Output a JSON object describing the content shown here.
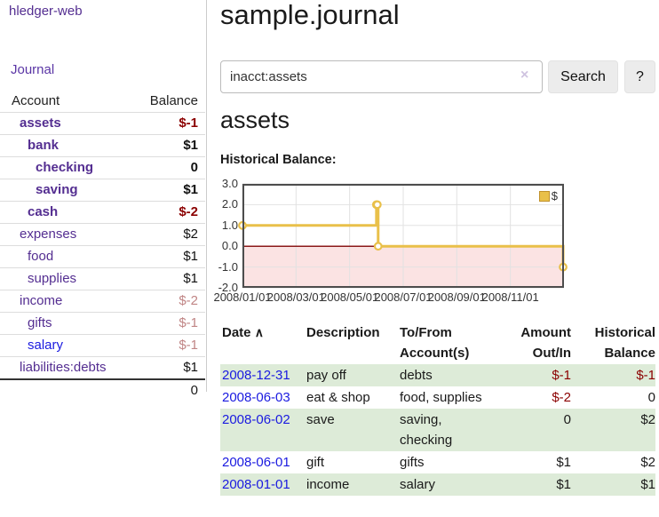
{
  "app": {
    "brand": "hledger-web"
  },
  "sidebar": {
    "nav": {
      "journal_label": "Journal"
    },
    "accounts_table": {
      "headers": {
        "account": "Account",
        "balance": "Balance"
      },
      "rows": [
        {
          "name": "assets",
          "depth": 1,
          "bold": true,
          "balance": "$-1",
          "balance_color": "negative"
        },
        {
          "name": "bank",
          "depth": 2,
          "bold": true,
          "balance": "$1",
          "balance_color": "normal"
        },
        {
          "name": "checking",
          "depth": 3,
          "bold": true,
          "balance": "0",
          "balance_color": "normal"
        },
        {
          "name": "saving",
          "depth": 3,
          "bold": true,
          "balance": "$1",
          "balance_color": "normal"
        },
        {
          "name": "cash",
          "depth": 2,
          "bold": true,
          "balance": "$-2",
          "balance_color": "negative"
        },
        {
          "name": "expenses",
          "depth": 1,
          "bold": false,
          "balance": "$2",
          "balance_color": "normal"
        },
        {
          "name": "food",
          "depth": 2,
          "bold": false,
          "balance": "$1",
          "balance_color": "normal"
        },
        {
          "name": "supplies",
          "depth": 2,
          "bold": false,
          "balance": "$1",
          "balance_color": "normal"
        },
        {
          "name": "income",
          "depth": 1,
          "bold": false,
          "balance": "$-2",
          "balance_color": "rose"
        },
        {
          "name": "gifts",
          "depth": 2,
          "bold": false,
          "balance": "$-1",
          "balance_color": "rose"
        },
        {
          "name": "salary",
          "depth": 2,
          "bold": false,
          "balance": "$-1",
          "balance_color": "rose",
          "link_color": "blue"
        },
        {
          "name": "liabilities:debts",
          "depth": 1,
          "bold": false,
          "balance": "$1",
          "balance_color": "normal"
        }
      ],
      "total": "0"
    }
  },
  "main": {
    "title": "sample.journal",
    "search": {
      "value": "inacct:assets",
      "clear_icon": "×",
      "button_label": "Search",
      "help_label": "?"
    },
    "section_title": "assets",
    "chart_label": "Historical Balance:"
  },
  "chart_data": {
    "type": "line",
    "step": true,
    "title": "Historical Balance:",
    "legend_label": "$",
    "legend_position": "top-right",
    "grid": true,
    "ylim": [
      -2,
      3
    ],
    "x_range_months": 12,
    "y_ticks": [
      "3.0",
      "2.0",
      "1.0",
      "0.0",
      "-1.0",
      "-2.0"
    ],
    "x_tick_labels": [
      "2008/01/01",
      "2008/03/01",
      "2008/05/01",
      "2008/07/01",
      "2008/09/01",
      "2008/11/01"
    ],
    "series": [
      {
        "name": "$",
        "points": [
          {
            "date": "2008-01-01",
            "value": 1
          },
          {
            "date": "2008-06-01",
            "value": 2
          },
          {
            "date": "2008-06-02",
            "value": 2
          },
          {
            "date": "2008-06-03",
            "value": 0
          },
          {
            "date": "2008-12-31",
            "value": -1
          }
        ]
      }
    ],
    "colors": {
      "line": "#e9c04a",
      "marker_fill": "#ffffff",
      "negative_region": "#fbe3e3",
      "zero_line": "#8b1a1a",
      "grid": "#e2e2e2",
      "border": "#4d4d4d"
    }
  },
  "transactions": {
    "headers": {
      "date": "Date",
      "sort_indicator": "∧",
      "description": "Description",
      "accounts": "To/From Account(s)",
      "amount": "Amount Out/In",
      "balance": "Historical Balance"
    },
    "rows": [
      {
        "date": "2008-12-31",
        "description": "pay off",
        "accounts": "debts",
        "amount": "$-1",
        "amount_negative": true,
        "balance": "$-1",
        "balance_negative": true
      },
      {
        "date": "2008-06-03",
        "description": "eat & shop",
        "accounts": "food, supplies",
        "amount": "$-2",
        "amount_negative": true,
        "balance": "0",
        "balance_negative": false
      },
      {
        "date": "2008-06-02",
        "description": "save",
        "accounts": "saving, checking",
        "amount": "0",
        "amount_negative": false,
        "balance": "$2",
        "balance_negative": false
      },
      {
        "date": "2008-06-01",
        "description": "gift",
        "accounts": "gifts",
        "amount": "$1",
        "amount_negative": false,
        "balance": "$2",
        "balance_negative": false
      },
      {
        "date": "2008-01-01",
        "description": "income",
        "accounts": "salary",
        "amount": "$1",
        "amount_negative": false,
        "balance": "$1",
        "balance_negative": false
      }
    ]
  }
}
